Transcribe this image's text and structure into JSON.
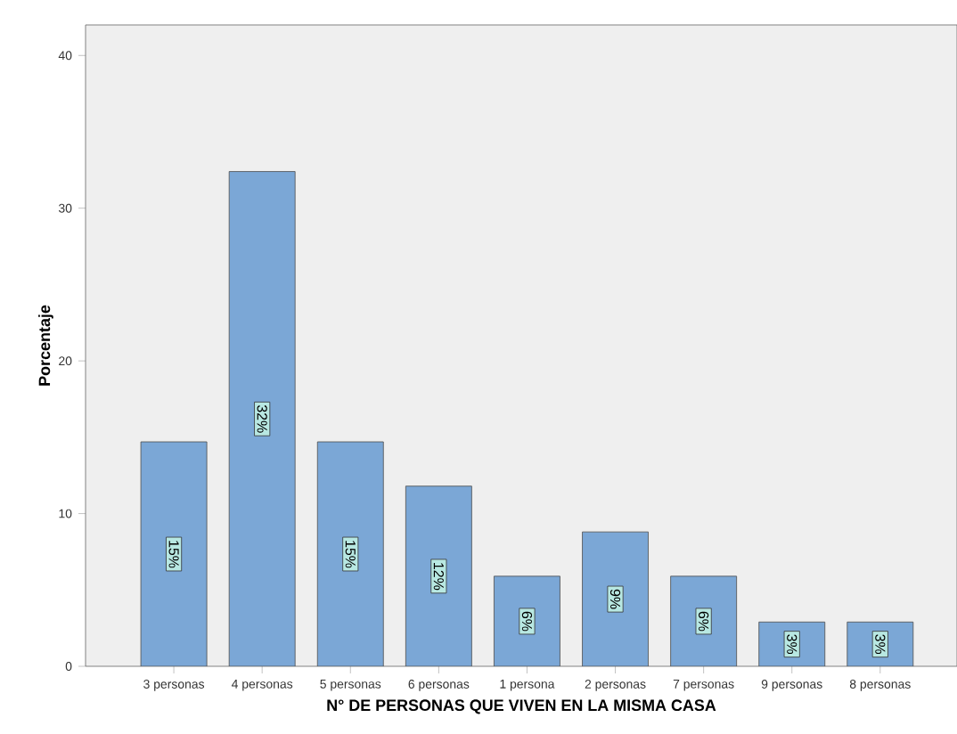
{
  "chart_data": {
    "type": "bar",
    "xlabel": "N° DE PERSONAS QUE VIVEN EN LA MISMA CASA",
    "ylabel": "Porcentaje",
    "categories": [
      "3 personas",
      "4 personas",
      "5 personas",
      "6 personas",
      "1 persona",
      "2 personas",
      "7 personas",
      "9 personas",
      "8 personas"
    ],
    "values": [
      14.7,
      32.4,
      14.7,
      11.8,
      5.9,
      8.8,
      5.9,
      2.9,
      2.9
    ],
    "value_labels": [
      "15%",
      "32%",
      "15%",
      "12%",
      "6%",
      "9%",
      "6%",
      "3%",
      "3%"
    ],
    "color": "#7ba7d6",
    "ylim": [
      0,
      42
    ],
    "yticks": [
      0,
      10,
      20,
      30,
      40
    ]
  }
}
